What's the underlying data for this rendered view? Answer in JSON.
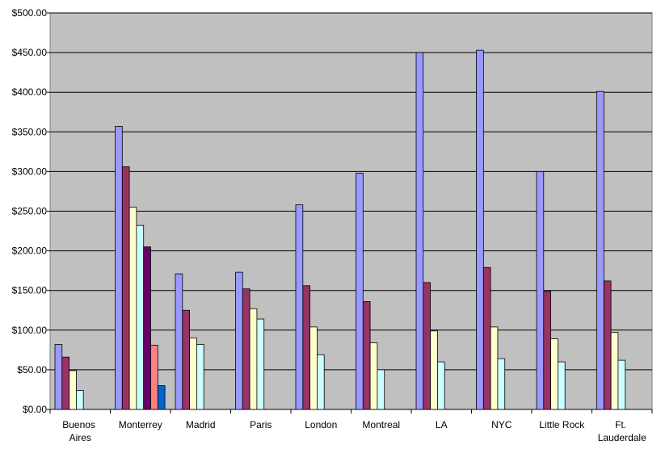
{
  "chart_data": {
    "type": "bar",
    "categories": [
      "Buenos Aires",
      "Monterrey",
      "Madrid",
      "Paris",
      "London",
      "Montreal",
      "LA",
      "NYC",
      "Little Rock",
      "Ft. Lauderdale"
    ],
    "series": [
      {
        "color": "#9999ff",
        "values": [
          82,
          357,
          171,
          173,
          258,
          298,
          450,
          453,
          300,
          401
        ]
      },
      {
        "color": "#993366",
        "values": [
          66,
          306,
          125,
          152,
          156,
          136,
          160,
          179,
          149,
          162
        ]
      },
      {
        "color": "#ffffcc",
        "values": [
          49,
          255,
          90,
          127,
          104,
          84,
          99,
          104,
          89,
          97
        ]
      },
      {
        "color": "#ccffff",
        "values": [
          24,
          232,
          82,
          114,
          69,
          50,
          60,
          64,
          60,
          62
        ]
      },
      {
        "color": "#660066",
        "values": [
          null,
          205,
          null,
          null,
          null,
          null,
          null,
          null,
          null,
          null
        ]
      },
      {
        "color": "#ff8080",
        "values": [
          null,
          81,
          null,
          null,
          null,
          null,
          null,
          null,
          null,
          null
        ]
      },
      {
        "color": "#0066cc",
        "values": [
          null,
          30,
          null,
          null,
          null,
          null,
          null,
          null,
          null,
          null
        ]
      }
    ],
    "ylim": [
      0,
      500
    ],
    "yticks": [
      {
        "value": 0,
        "label": "$0.00"
      },
      {
        "value": 50,
        "label": "$50.00"
      },
      {
        "value": 100,
        "label": "$100.00"
      },
      {
        "value": 150,
        "label": "$150.00"
      },
      {
        "value": 200,
        "label": "$200.00"
      },
      {
        "value": 250,
        "label": "$250.00"
      },
      {
        "value": 300,
        "label": "$300.00"
      },
      {
        "value": 350,
        "label": "$350.00"
      },
      {
        "value": 400,
        "label": "$400.00"
      },
      {
        "value": 450,
        "label": "$450.00"
      },
      {
        "value": 500,
        "label": "$500.00"
      }
    ],
    "grid": true
  }
}
